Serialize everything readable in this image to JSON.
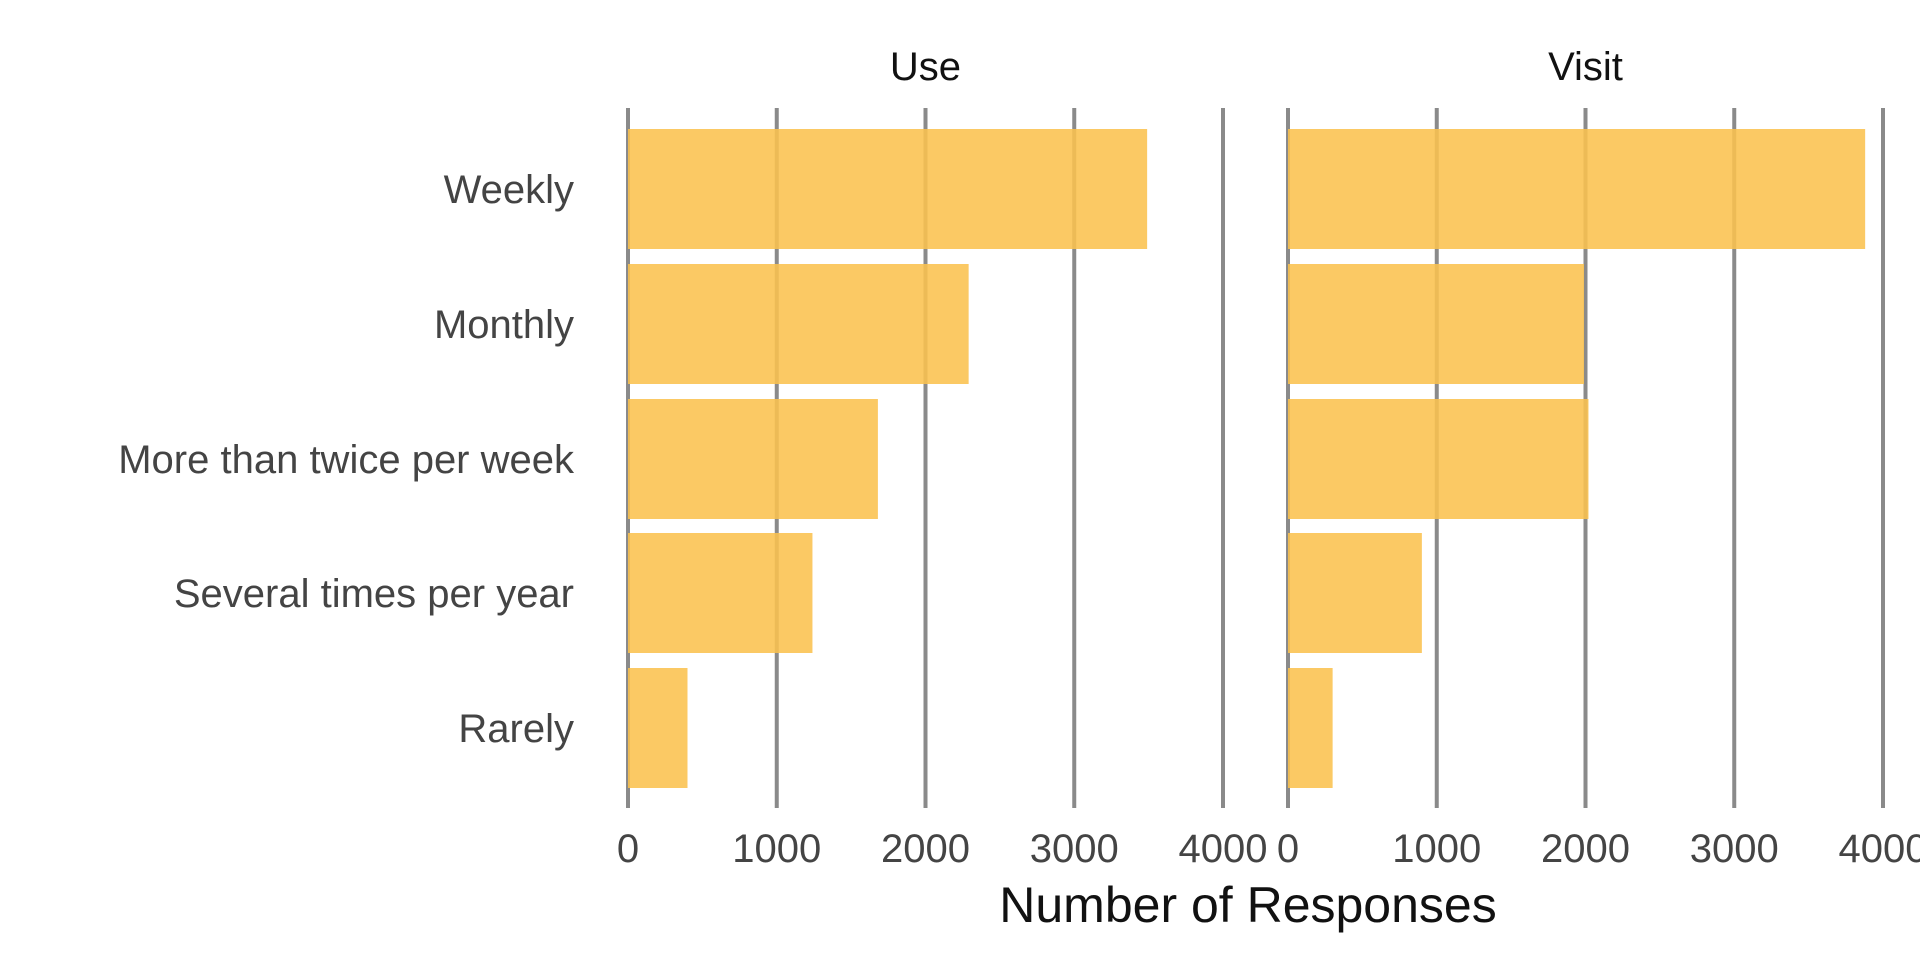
{
  "chart_data": {
    "type": "bar",
    "orientation": "horizontal",
    "categories": [
      "Weekly",
      "Monthly",
      "More than twice per week",
      "Several times per year",
      "Rarely"
    ],
    "panels": [
      {
        "title": "Use",
        "values": [
          3490,
          2290,
          1680,
          1240,
          400
        ]
      },
      {
        "title": "Visit",
        "values": [
          3880,
          1990,
          2020,
          900,
          300
        ]
      }
    ],
    "xlim": [
      0,
      4000
    ],
    "xticks": [
      0,
      1000,
      2000,
      3000,
      4000
    ],
    "xtick_labels": [
      "0",
      "1000",
      "2000",
      "3000",
      "4000"
    ],
    "xlabel": "Number of Responses",
    "ylabel": "",
    "grid": "vertical",
    "bar_color": "#fbc14e",
    "grid_color": "#8a8a8a"
  }
}
